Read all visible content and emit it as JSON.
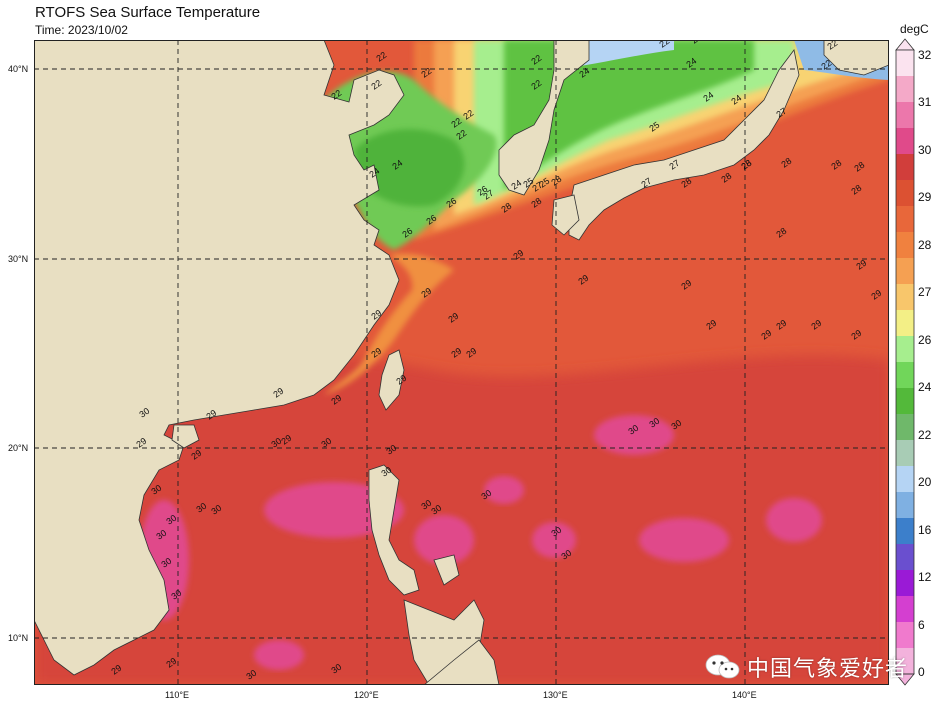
{
  "title": "RTOFS Sea Surface Temperature",
  "subtitle": "Time: 2023/10/02",
  "colorbar": {
    "unit": "degC",
    "ticks": [
      "32",
      "31",
      "30",
      "29",
      "28",
      "27",
      "26",
      "24",
      "22",
      "20",
      "16",
      "12",
      "6",
      "0"
    ],
    "colors": [
      "#fbe3ef",
      "#f4a9c8",
      "#ec77ab",
      "#e04a8a",
      "#d13e3b",
      "#dc5132",
      "#e8673a",
      "#f0813f",
      "#f5a052",
      "#f8c66b",
      "#f3ef86",
      "#a6ee8e",
      "#71d65a",
      "#53b93a",
      "#6fb86a",
      "#a8ccb5",
      "#b5d4f4",
      "#7fb0e2",
      "#3c7fcb",
      "#6a4fcf",
      "#9a1ad6",
      "#d43fd0",
      "#f07acd",
      "#f3b2dc"
    ]
  },
  "axes": {
    "lon_labels": [
      "110°E",
      "120°E",
      "130°E",
      "140°E"
    ],
    "lat_labels": [
      "40°N",
      "30°N",
      "20°N",
      "10°N"
    ]
  },
  "contour_labels": [
    "22",
    "22",
    "22",
    "22",
    "22",
    "22",
    "22",
    "22",
    "22",
    "22",
    "22",
    "22",
    "22",
    "24",
    "24",
    "24",
    "24",
    "24",
    "24",
    "24",
    "25",
    "25",
    "25",
    "26",
    "26",
    "26",
    "26",
    "27",
    "27",
    "27",
    "27",
    "27",
    "28",
    "28",
    "28",
    "28",
    "28",
    "28",
    "28",
    "28",
    "28",
    "28",
    "28",
    "28",
    "29",
    "29",
    "29",
    "29",
    "29",
    "29",
    "29",
    "29",
    "29",
    "29",
    "29",
    "29",
    "29",
    "29",
    "29",
    "29",
    "29",
    "29",
    "29",
    "29",
    "29",
    "29",
    "29",
    "29",
    "29",
    "30",
    "30",
    "30",
    "30",
    "30",
    "30",
    "30",
    "30",
    "30",
    "30",
    "30",
    "30",
    "30",
    "30",
    "30",
    "30",
    "30",
    "30",
    "30",
    "30",
    "30",
    "30"
  ],
  "watermark": "中国气象爱好者"
}
